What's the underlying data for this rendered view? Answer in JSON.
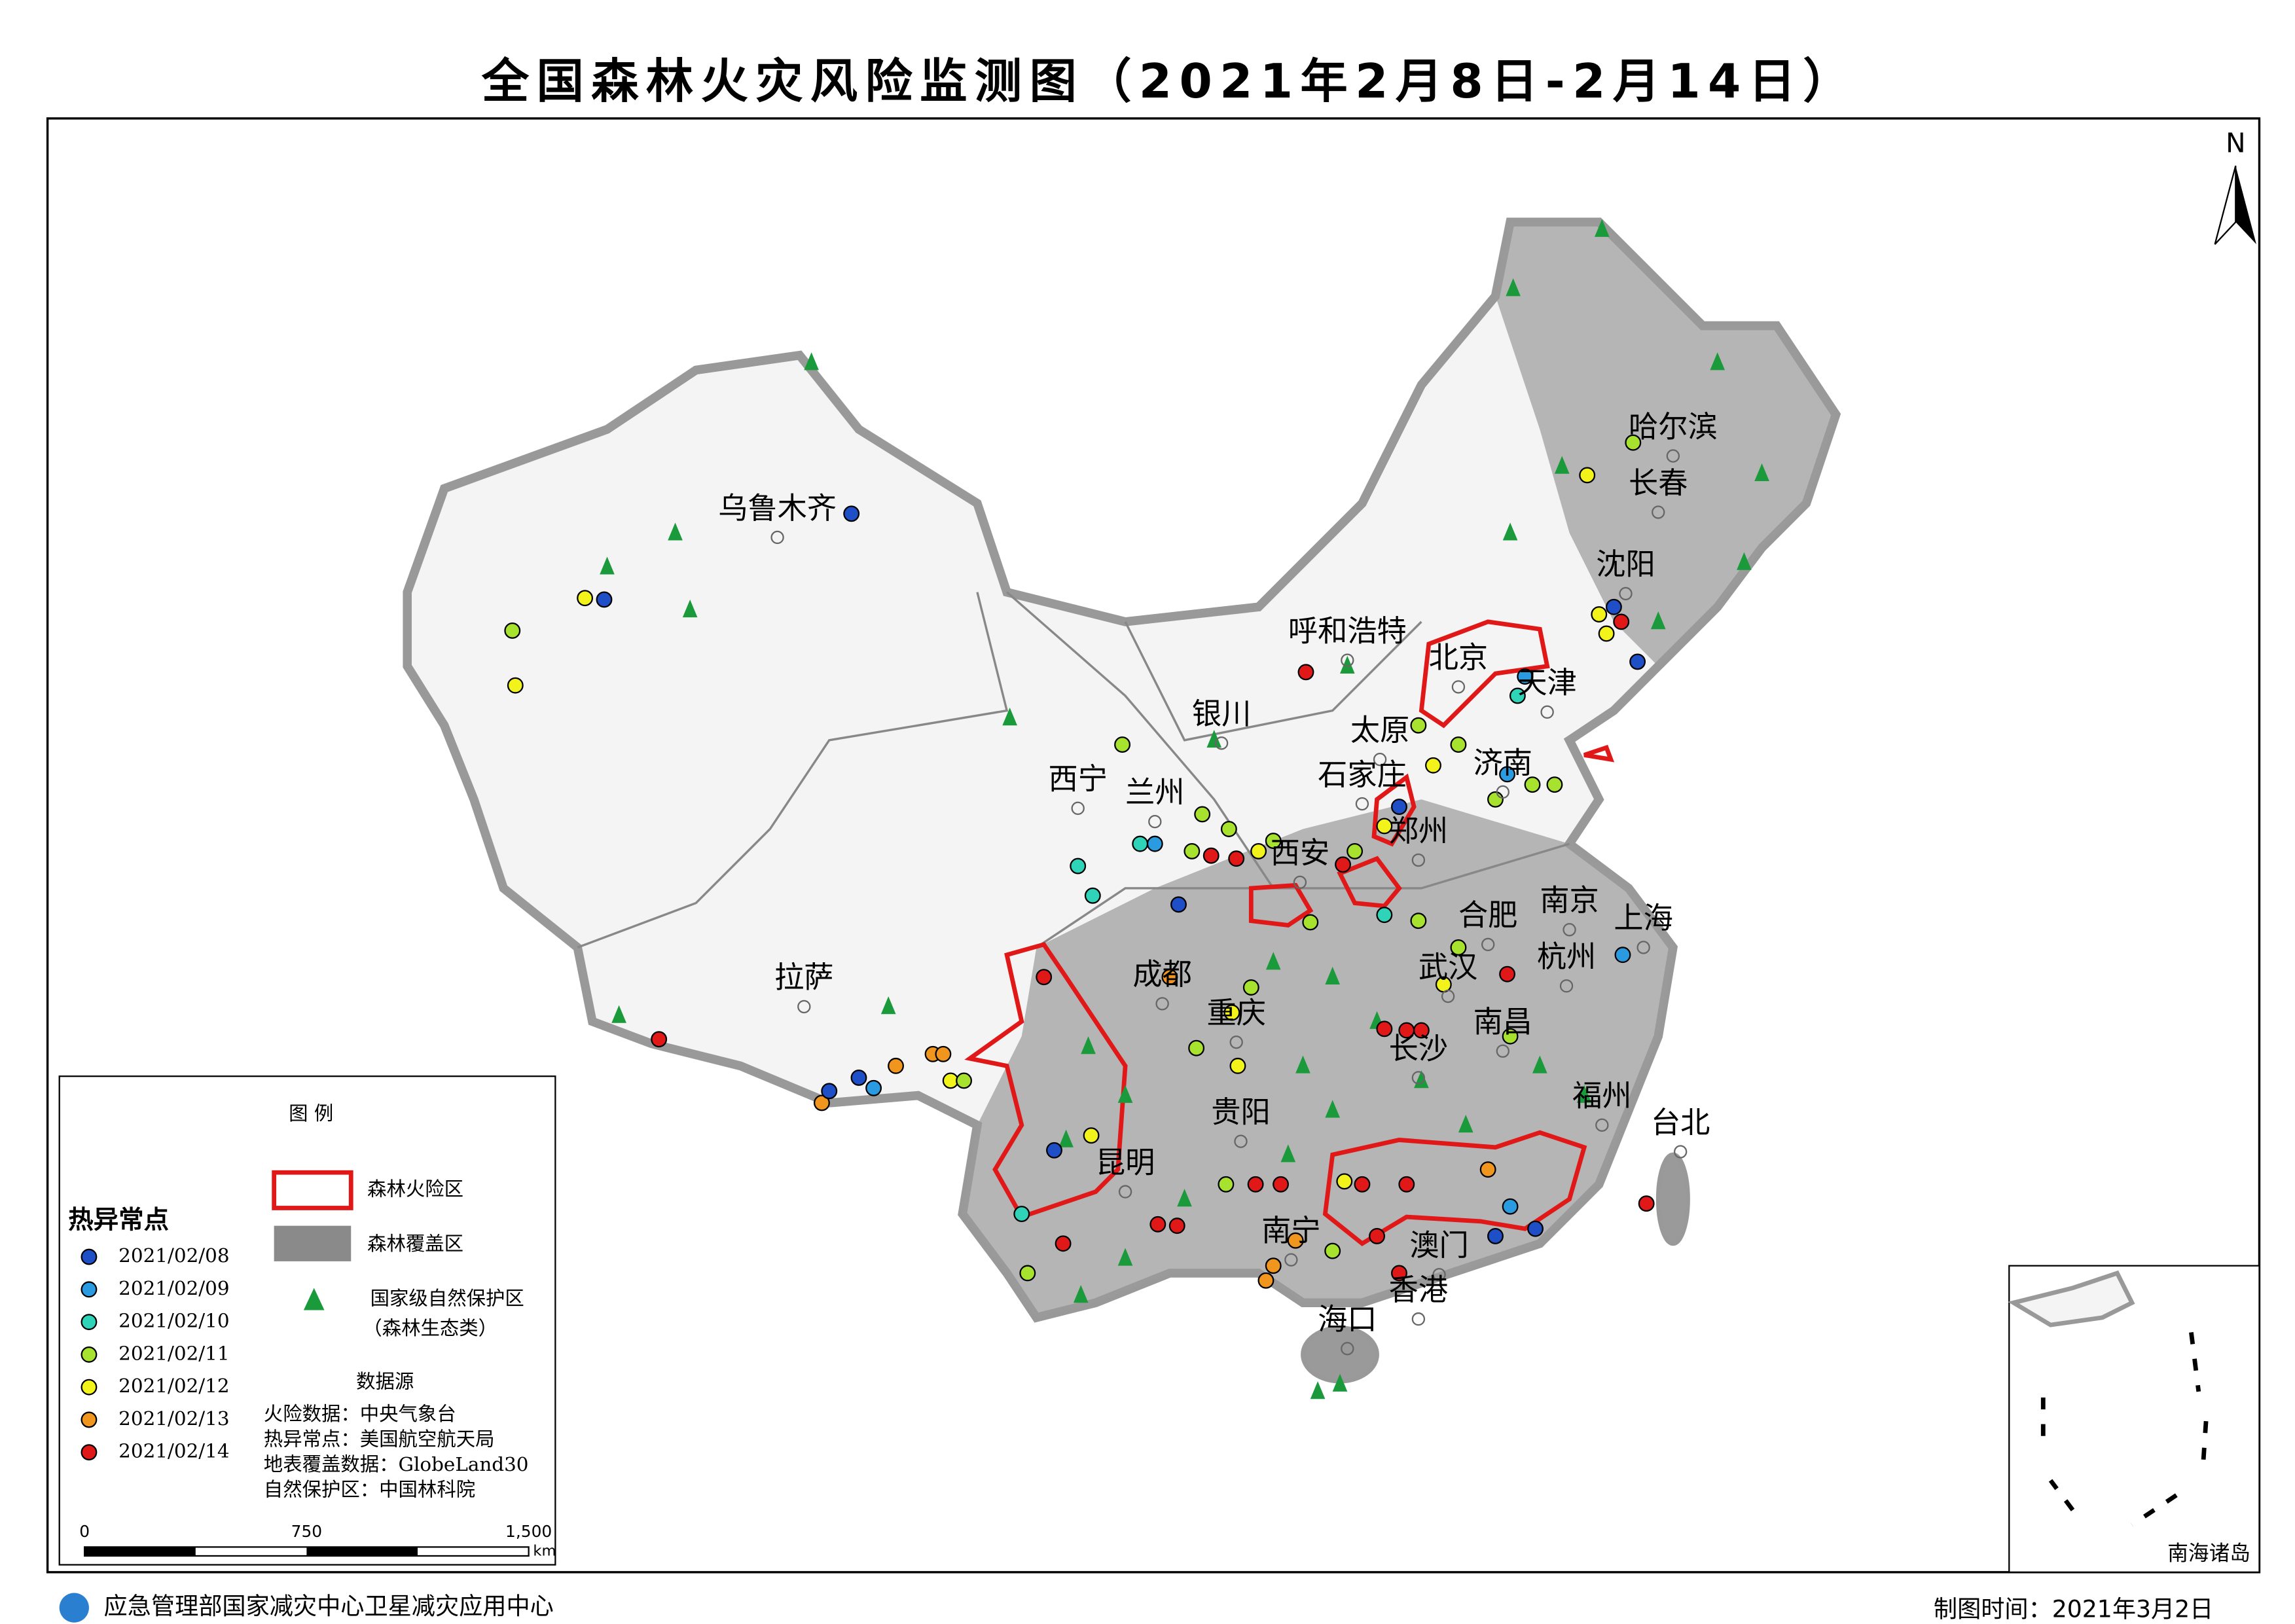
{
  "title": "全国森林火灾风险监测图（2021年2月8日-2月14日）",
  "north": "N",
  "cities": [
    "乌鲁木齐",
    "哈尔滨",
    "长春",
    "沈阳",
    "呼和浩特",
    "北京",
    "天津",
    "银川",
    "太原",
    "石家庄",
    "济南",
    "西宁",
    "兰州",
    "郑州",
    "西安",
    "合肥",
    "南京",
    "上海",
    "拉萨",
    "成都",
    "武汉",
    "杭州",
    "重庆",
    "南昌",
    "长沙",
    "贵阳",
    "福州",
    "台北",
    "昆明",
    "南宁",
    "澳门",
    "香港",
    "海口"
  ],
  "legend": {
    "title": "图  例",
    "hotspot_title": "热异常点",
    "hotspots": [
      {
        "name": "2021/02/08",
        "color": "#1f4fc7"
      },
      {
        "name": "2021/02/09",
        "color": "#2a9be0"
      },
      {
        "name": "2021/02/10",
        "color": "#2fd3b8"
      },
      {
        "name": "2021/02/11",
        "color": "#a6e22e"
      },
      {
        "name": "2021/02/12",
        "color": "#f3f31c"
      },
      {
        "name": "2021/02/13",
        "color": "#f0961e"
      },
      {
        "name": "2021/02/14",
        "color": "#e01818"
      }
    ],
    "risk_zone": "森林火险区",
    "forest": "森林覆盖区",
    "reserve": [
      "国家级自然保护区",
      "（森林生态类）"
    ],
    "source_title": "数据源",
    "sources": [
      "火险数据：中央气象台",
      "热异常点：美国航空航天局",
      "地表覆盖数据：GlobeLand30",
      "自然保护区：中国林科院"
    ],
    "scale": [
      "0",
      "750",
      "1,500",
      "km"
    ]
  },
  "inset": "南海诸岛",
  "footer": {
    "org": "应急管理部国家减灾中心卫星减灾应用中心",
    "date": "制图时间：2021年3月2日"
  }
}
